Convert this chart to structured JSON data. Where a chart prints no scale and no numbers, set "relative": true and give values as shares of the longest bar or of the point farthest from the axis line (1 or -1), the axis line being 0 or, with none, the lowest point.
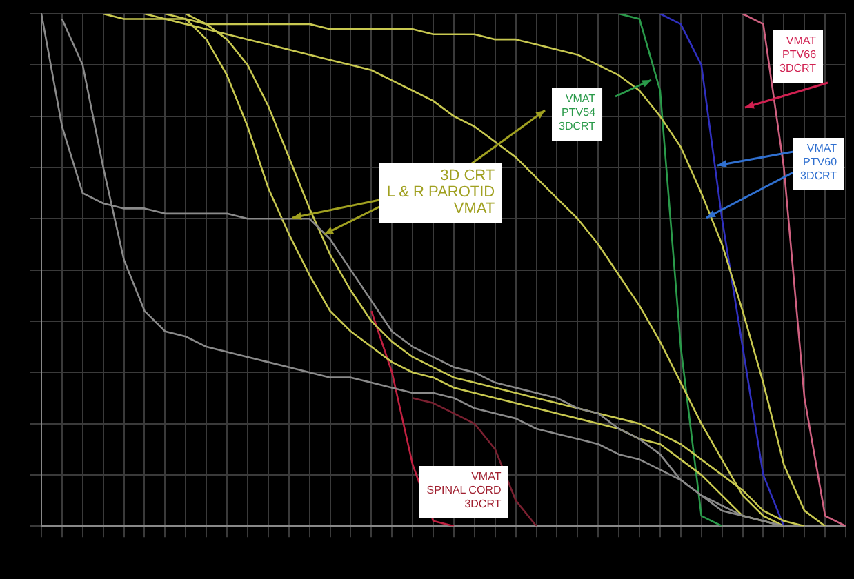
{
  "chart_data": {
    "type": "line",
    "relative": true,
    "grid": true,
    "marker": "none",
    "line_style": "solid",
    "categories": [
      null,
      null,
      null,
      null,
      null,
      null,
      null,
      null,
      null,
      null,
      null,
      null,
      null,
      null,
      null,
      null,
      null,
      null,
      null,
      null,
      null,
      null,
      null,
      null,
      null,
      null,
      null,
      null,
      null,
      null,
      null,
      null,
      null,
      null,
      null,
      null,
      null,
      null,
      null,
      null
    ],
    "series": [
      {
        "color": "#8a8a8a",
        "values": [
          1,
          0.78,
          0.65,
          0.63,
          0.62,
          0.62,
          0.61,
          0.61,
          0.61,
          0.61,
          0.6,
          0.6,
          0.6,
          0.6,
          0.56,
          0.5,
          0.44,
          0.38,
          0.35,
          0.33,
          0.31,
          0.3,
          0.28,
          0.27,
          0.26,
          0.25,
          0.23,
          0.22,
          0.19,
          0.17,
          0.14,
          0.09,
          0.06,
          0.03,
          0.02,
          0.01,
          0,
          null,
          null,
          null
        ]
      },
      {
        "color": "#8a8a8a",
        "values": [
          null,
          0.99,
          0.9,
          0.7,
          0.52,
          0.42,
          0.38,
          0.37,
          0.35,
          0.34,
          0.33,
          0.32,
          0.31,
          0.3,
          0.29,
          0.29,
          0.28,
          0.27,
          0.26,
          0.26,
          0.25,
          0.23,
          0.22,
          0.21,
          0.19,
          0.18,
          0.17,
          0.16,
          0.14,
          0.13,
          0.11,
          0.09,
          0.06,
          0.04,
          0.02,
          0.01,
          0,
          null,
          null,
          null
        ]
      },
      {
        "color": "#c8c850",
        "values": [
          null,
          null,
          null,
          null,
          null,
          null,
          1,
          0.99,
          0.95,
          0.88,
          0.78,
          0.66,
          0.57,
          0.49,
          0.42,
          0.38,
          0.35,
          0.32,
          0.3,
          0.29,
          0.27,
          0.26,
          0.25,
          0.24,
          0.23,
          0.22,
          0.21,
          0.2,
          0.19,
          0.17,
          0.16,
          0.13,
          0.1,
          0.06,
          0.02,
          0.01,
          0,
          null,
          null,
          null
        ]
      },
      {
        "color": "#c8c850",
        "values": [
          null,
          null,
          null,
          null,
          null,
          null,
          null,
          1,
          0.98,
          0.95,
          0.9,
          0.82,
          0.72,
          0.62,
          0.53,
          0.46,
          0.4,
          0.36,
          0.33,
          0.31,
          0.29,
          0.28,
          0.27,
          0.26,
          0.25,
          0.24,
          0.23,
          0.22,
          0.21,
          0.2,
          0.18,
          0.16,
          0.13,
          0.1,
          0.07,
          0.03,
          0.01,
          0,
          null,
          null
        ]
      },
      {
        "color": "#c8c850",
        "values": [
          null,
          null,
          null,
          1,
          0.99,
          0.99,
          0.99,
          0.99,
          0.98,
          0.98,
          0.98,
          0.98,
          0.98,
          0.98,
          0.97,
          0.97,
          0.97,
          0.97,
          0.97,
          0.96,
          0.96,
          0.96,
          0.95,
          0.95,
          0.94,
          0.93,
          0.92,
          0.9,
          0.88,
          0.85,
          0.8,
          0.74,
          0.65,
          0.55,
          0.42,
          0.28,
          0.12,
          0.03,
          0,
          null
        ]
      },
      {
        "color": "#c8c850",
        "values": [
          null,
          null,
          null,
          null,
          null,
          1,
          0.99,
          0.98,
          0.97,
          0.96,
          0.95,
          0.94,
          0.93,
          0.92,
          0.91,
          0.9,
          0.89,
          0.87,
          0.85,
          0.83,
          0.8,
          0.78,
          0.75,
          0.72,
          0.68,
          0.64,
          0.6,
          0.55,
          0.49,
          0.43,
          0.36,
          0.28,
          0.2,
          0.13,
          0.06,
          0.02,
          0,
          null,
          null,
          null
        ]
      },
      {
        "color": "#c02040",
        "values": [
          null,
          null,
          null,
          null,
          null,
          null,
          null,
          null,
          null,
          null,
          null,
          null,
          null,
          null,
          null,
          null,
          0.42,
          0.3,
          0.12,
          0.01,
          0,
          null,
          null,
          null,
          null,
          null,
          null,
          null,
          null,
          null,
          null,
          null,
          null,
          null,
          null,
          null,
          null,
          null,
          null,
          null
        ]
      },
      {
        "color": "#7a2030",
        "values": [
          null,
          null,
          null,
          null,
          null,
          null,
          null,
          null,
          null,
          null,
          null,
          null,
          null,
          null,
          null,
          null,
          null,
          null,
          0.25,
          0.24,
          0.22,
          0.2,
          0.15,
          0.05,
          0,
          null,
          null,
          null,
          null,
          null,
          null,
          null,
          null,
          null,
          null,
          null,
          null,
          null,
          null,
          null
        ]
      },
      {
        "color": "#2a9a4a",
        "values": [
          null,
          null,
          null,
          null,
          null,
          null,
          null,
          null,
          null,
          null,
          null,
          null,
          null,
          null,
          null,
          null,
          null,
          null,
          null,
          null,
          null,
          null,
          null,
          null,
          null,
          null,
          null,
          null,
          1,
          0.99,
          0.85,
          0.35,
          0.02,
          0,
          null,
          null,
          null,
          null,
          null,
          null
        ]
      },
      {
        "color": "#3030c0",
        "values": [
          null,
          null,
          null,
          null,
          null,
          null,
          null,
          null,
          null,
          null,
          null,
          null,
          null,
          null,
          null,
          null,
          null,
          null,
          null,
          null,
          null,
          null,
          null,
          null,
          null,
          null,
          null,
          null,
          null,
          null,
          1,
          0.98,
          0.9,
          0.6,
          0.35,
          0.1,
          0,
          null,
          null,
          null
        ]
      },
      {
        "color": "#d06080",
        "values": [
          null,
          null,
          null,
          null,
          null,
          null,
          null,
          null,
          null,
          null,
          null,
          null,
          null,
          null,
          null,
          null,
          null,
          null,
          null,
          null,
          null,
          null,
          null,
          null,
          null,
          null,
          null,
          null,
          null,
          null,
          null,
          null,
          null,
          null,
          1,
          0.98,
          0.7,
          0.25,
          0.02,
          0
        ]
      }
    ],
    "annotations": [
      "VMAT\nPTV54\n3DCRT",
      "VMAT\nPTV66\n3DCRT",
      "VMAT\nPTV60\n3DCRT",
      "3D CRT\nL & R PAROTID\nVMAT",
      "VMAT\nSPINAL CORD\n3DCRT"
    ]
  }
}
